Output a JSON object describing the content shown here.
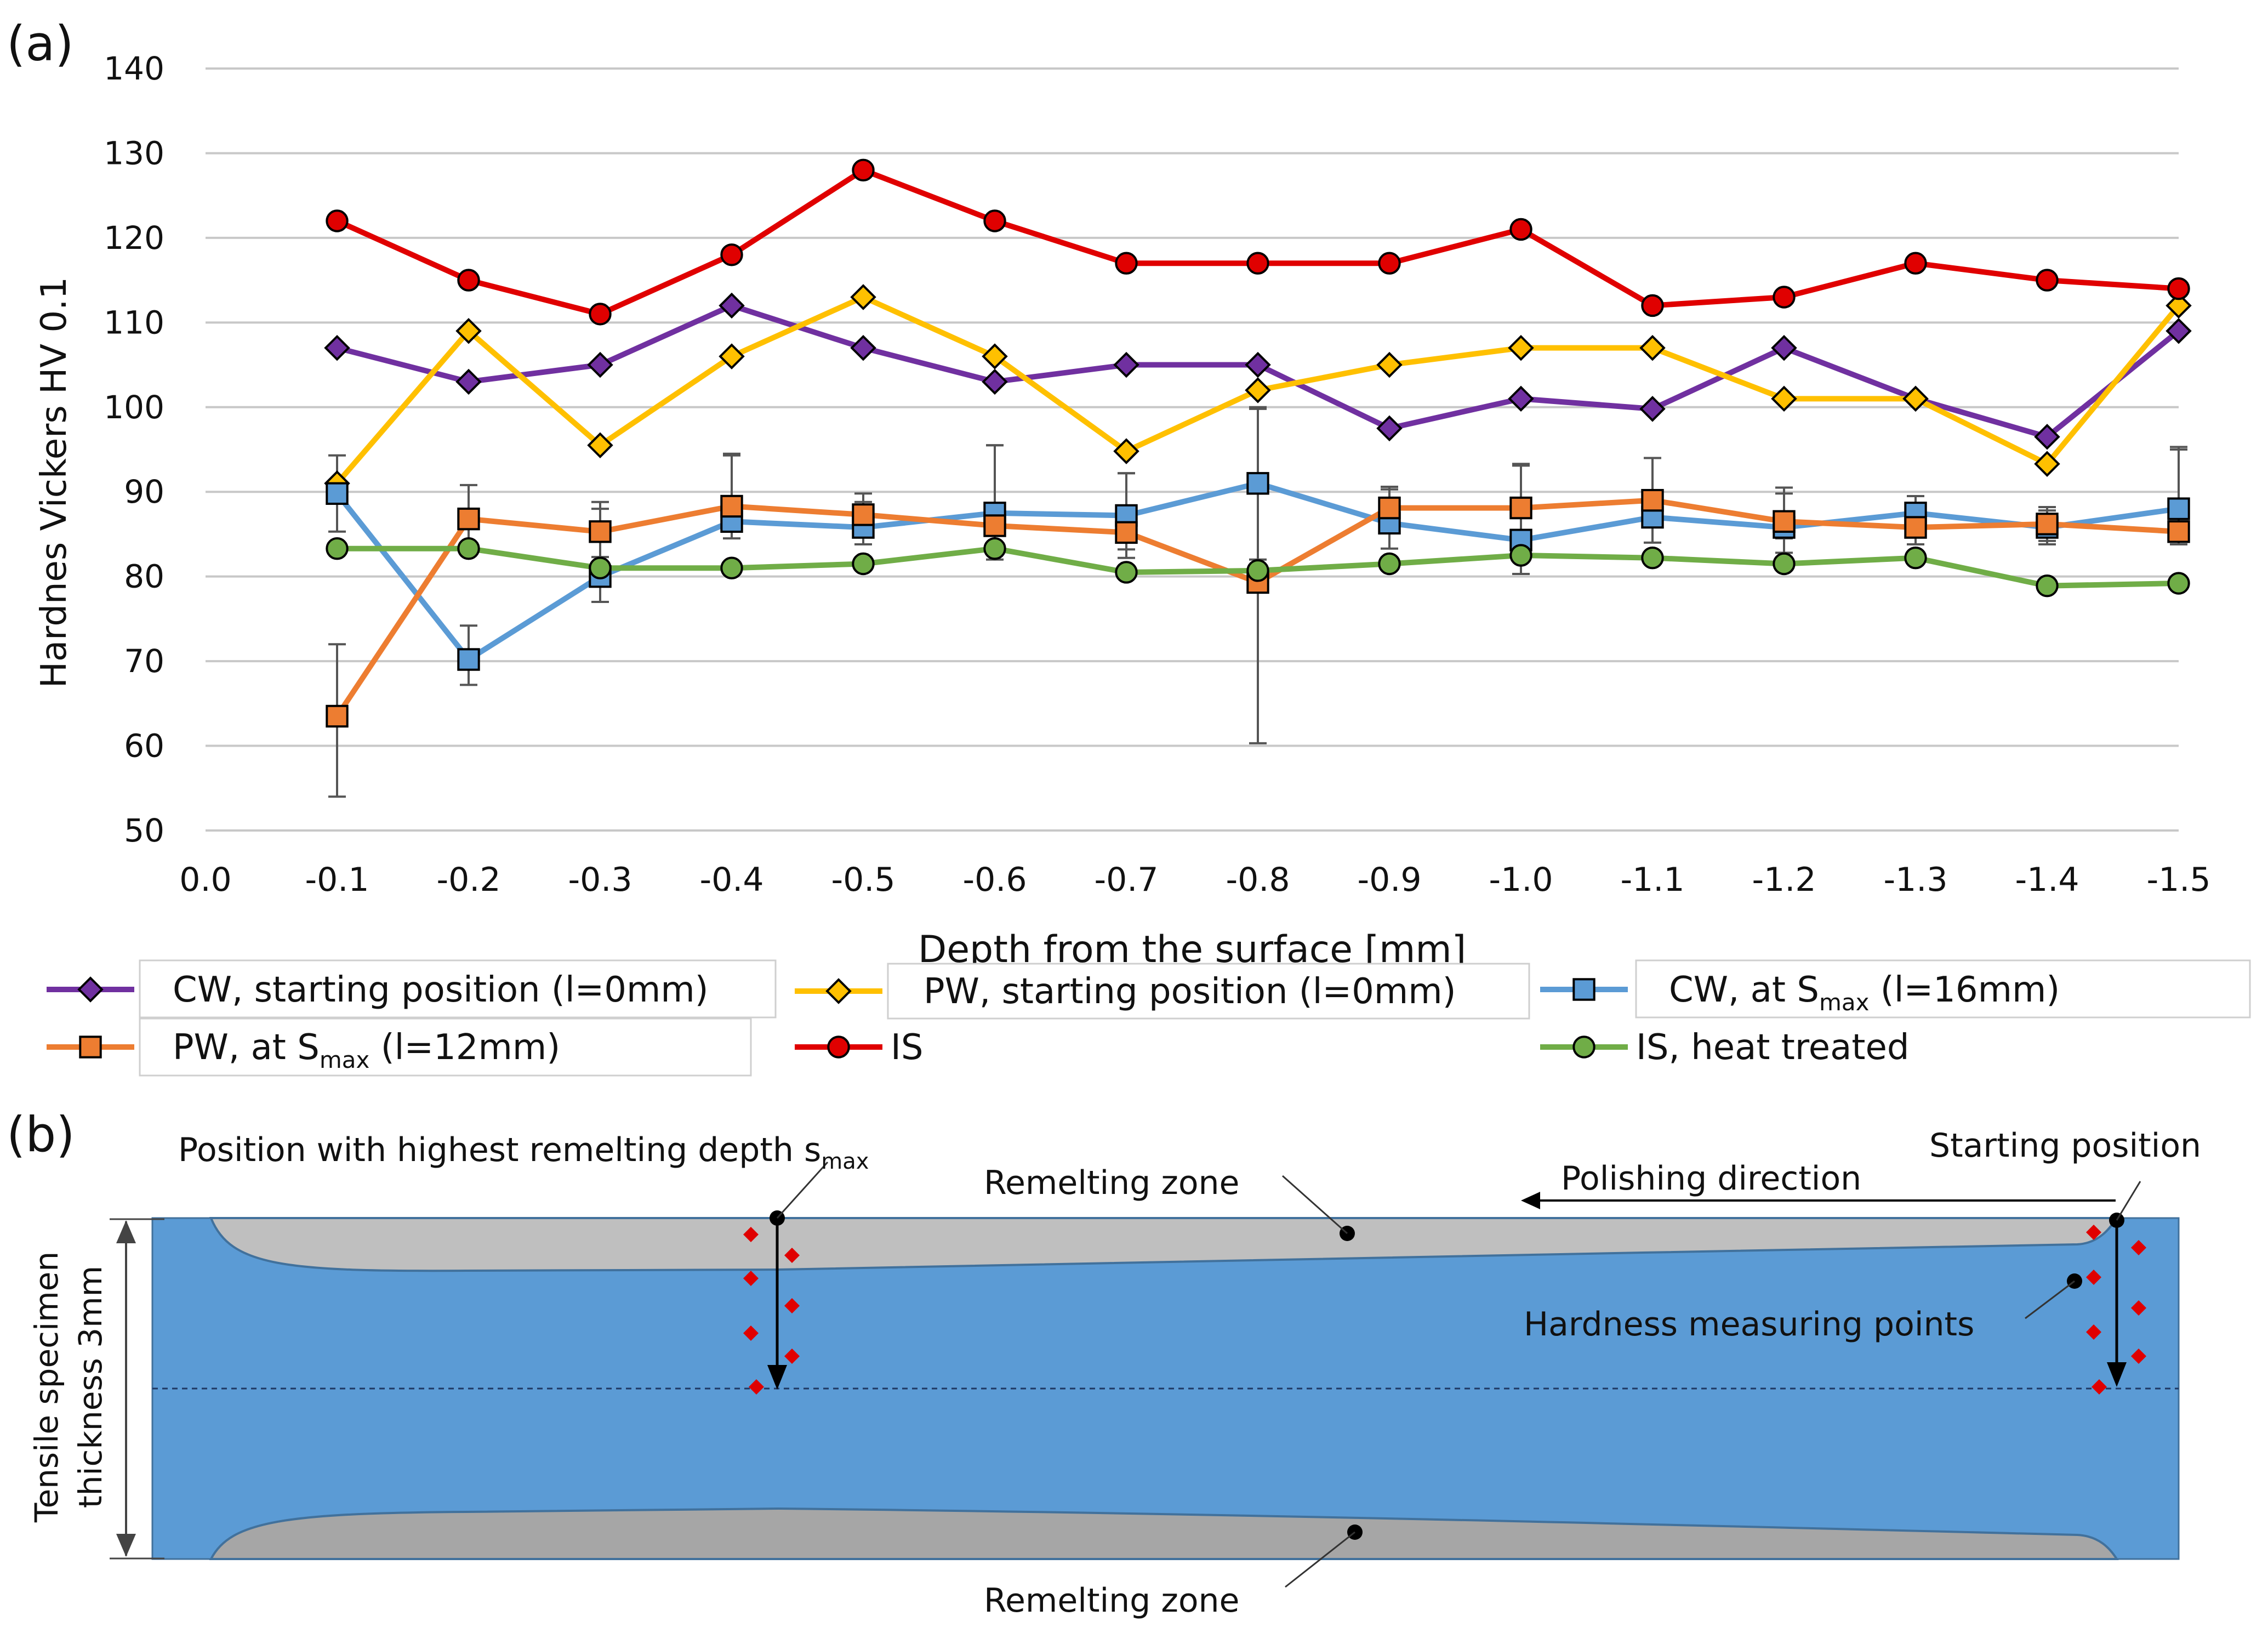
{
  "panel_labels": {
    "a": "(a)",
    "b": "(b)"
  },
  "colors": {
    "CW_start": "#7030a0",
    "PW_start": "#ffc000",
    "CW_smax": "#5b9bd5",
    "PW_smax": "#ed7d31",
    "IS": "#e00000",
    "IS_ht": "#70ad47",
    "specimen": "#5b9bd5",
    "remelt": "#bfbfbf",
    "point": "#e00000"
  },
  "chart_data": {
    "type": "line",
    "title": "",
    "xlabel": "Depth from the surface [mm]",
    "ylabel": "Hardnes Vickers HV 0.1",
    "ylim": [
      50,
      140
    ],
    "yticks": [
      "50",
      "60",
      "70",
      "80",
      "90",
      "100",
      "110",
      "120",
      "130",
      "140"
    ],
    "x_tick_labels": [
      "0.0",
      "-0.1",
      "-0.2",
      "-0.3",
      "-0.4",
      "-0.5",
      "-0.6",
      "-0.7",
      "-0.8",
      "-0.9",
      "-1.0",
      "-1.1",
      "-1.2",
      "-1.3",
      "-1.4",
      "-1.5"
    ],
    "x": [
      -0.1,
      -0.2,
      -0.3,
      -0.4,
      -0.5,
      -0.6,
      -0.7,
      -0.8,
      -0.9,
      -1.0,
      -1.1,
      -1.2,
      -1.3,
      -1.4,
      -1.5
    ],
    "grid": true,
    "legend_position": "bottom",
    "series": [
      {
        "key": "CW_start",
        "name_pre": "CW, starting position (l=0mm)",
        "name_sub": "",
        "name_post": "",
        "marker": "diamond",
        "values": [
          107,
          103,
          105,
          112,
          107,
          103,
          105,
          105,
          97.5,
          101,
          99.8,
          107,
          101,
          96.5,
          109
        ]
      },
      {
        "key": "PW_start",
        "name_pre": "PW, starting position (l=0mm)",
        "name_sub": "",
        "name_post": "",
        "marker": "diamond",
        "values": [
          91,
          109,
          95.5,
          106,
          113,
          106,
          94.8,
          102,
          105,
          107,
          107,
          101,
          101,
          93.3,
          112
        ]
      },
      {
        "key": "CW_smax",
        "name_pre": "CW, at S",
        "name_sub": "max",
        "name_post": " (l=16mm)",
        "marker": "square",
        "values": [
          89.8,
          70.2,
          80,
          86.5,
          85.8,
          87.5,
          87.2,
          91,
          86.3,
          84.3,
          87,
          85.8,
          87.5,
          85.8,
          88
        ],
        "err_low": [
          4.5,
          3,
          3,
          2,
          2,
          4,
          4,
          9,
          3,
          4,
          3,
          3,
          2,
          2,
          3
        ],
        "err_high": [
          4.5,
          4,
          8,
          8,
          3,
          8,
          5,
          9,
          4,
          9,
          7,
          4,
          2,
          2,
          7
        ]
      },
      {
        "key": "PW_smax",
        "name_pre": "PW, at S",
        "name_sub": "max",
        "name_post": " (l=12mm)",
        "marker": "square",
        "values": [
          63.5,
          86.8,
          85.3,
          88.3,
          87.3,
          86,
          85.2,
          79.3,
          88.1,
          88.1,
          89,
          86.5,
          85.8,
          86.2,
          85.3
        ],
        "err_low": [
          9.5,
          3,
          3,
          3,
          2,
          4,
          3,
          19,
          2,
          3,
          3,
          2,
          2,
          2,
          1.5
        ],
        "err_high": [
          8.5,
          4,
          3.5,
          6,
          2.5,
          9.5,
          7,
          20.5,
          2.5,
          5,
          5,
          4,
          2,
          2,
          10
        ]
      },
      {
        "key": "IS",
        "name_pre": "IS",
        "name_sub": "",
        "name_post": "",
        "marker": "circle",
        "values": [
          122,
          115,
          111,
          118,
          128,
          122,
          117,
          117,
          117,
          121,
          112,
          113,
          117,
          115,
          114
        ]
      },
      {
        "key": "IS_ht",
        "name_pre": "IS, heat treated",
        "name_sub": "",
        "name_post": "",
        "marker": "circle",
        "values": [
          83.3,
          83.3,
          81,
          81,
          81.5,
          83.3,
          80.5,
          80.7,
          81.5,
          82.5,
          82.2,
          81.5,
          82.2,
          78.9,
          79.2
        ]
      }
    ]
  },
  "diagram": {
    "label_smax_pre": "Position with highest remelting depth s",
    "label_smax_sub": "max",
    "label_remelt_top": "Remelting zone",
    "label_remelt_bottom": "Remelting zone",
    "label_polishing": "Polishing direction",
    "label_start": "Starting position",
    "label_hardness_points": "Hardness measuring points",
    "label_thickness_line1": "Tensile specimen",
    "label_thickness_line2": "thickness 3mm"
  }
}
